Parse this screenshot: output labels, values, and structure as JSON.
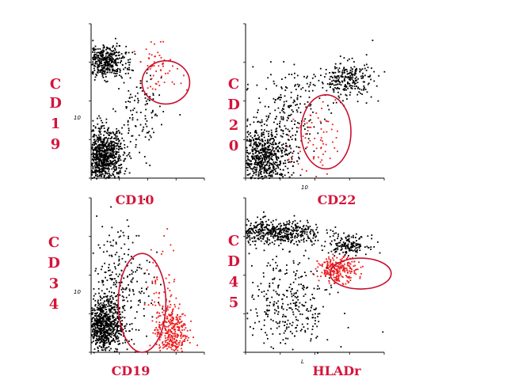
{
  "colors": {
    "label": "#d4143a",
    "highlight": "#ee1a1a",
    "gate": "#c8102e",
    "events": "#000000"
  },
  "chart_data": [
    {
      "type": "scatter",
      "xlabel": "CD10",
      "ylabel": "CD19",
      "ylabel_letters": [
        "C",
        "D",
        "1",
        "9"
      ],
      "x_tick_label": "",
      "y_tick_label": "10",
      "scale": "log",
      "clusters_black": [
        {
          "cx": 0.12,
          "cy": 0.76,
          "sx": 0.09,
          "sy": 0.05,
          "n": 420
        },
        {
          "cx": 0.1,
          "cy": 0.14,
          "sx": 0.09,
          "sy": 0.09,
          "n": 900
        },
        {
          "cx": 0.42,
          "cy": 0.4,
          "sx": 0.1,
          "sy": 0.18,
          "n": 120
        }
      ],
      "clusters_red": [
        {
          "cx": 0.6,
          "cy": 0.72,
          "sx": 0.1,
          "sy": 0.07,
          "n": 55
        }
      ],
      "gate": {
        "cx": 0.66,
        "cy": 0.62,
        "rx": 0.21,
        "ry": 0.14,
        "angle": 0
      }
    },
    {
      "type": "scatter",
      "xlabel": "CD22",
      "ylabel": "CD20",
      "ylabel_letters": [
        "C",
        "D",
        "2",
        "0"
      ],
      "x_tick_label": "10",
      "y_tick_label": "",
      "scale": "log",
      "clusters_black": [
        {
          "cx": 0.12,
          "cy": 0.14,
          "sx": 0.1,
          "sy": 0.1,
          "n": 750
        },
        {
          "cx": 0.72,
          "cy": 0.64,
          "sx": 0.1,
          "sy": 0.06,
          "n": 260
        },
        {
          "cx": 0.3,
          "cy": 0.45,
          "sx": 0.12,
          "sy": 0.12,
          "n": 180
        }
      ],
      "clusters_red": [
        {
          "cx": 0.48,
          "cy": 0.25,
          "sx": 0.08,
          "sy": 0.12,
          "n": 70
        }
      ],
      "gate": {
        "cx": 0.58,
        "cy": 0.3,
        "rx": 0.18,
        "ry": 0.24,
        "angle": 0
      }
    },
    {
      "type": "scatter",
      "xlabel": "CD19",
      "ylabel": "CD34",
      "ylabel_letters": [
        "C",
        "D",
        "3",
        "4"
      ],
      "x_tick_label": "",
      "y_tick_label": "10",
      "scale": "log",
      "clusters_black": [
        {
          "cx": 0.1,
          "cy": 0.18,
          "sx": 0.09,
          "sy": 0.09,
          "n": 800
        },
        {
          "cx": 0.24,
          "cy": 0.45,
          "sx": 0.14,
          "sy": 0.2,
          "n": 260
        }
      ],
      "clusters_red": [
        {
          "cx": 0.7,
          "cy": 0.14,
          "sx": 0.07,
          "sy": 0.09,
          "n": 320
        },
        {
          "cx": 0.62,
          "cy": 0.4,
          "sx": 0.07,
          "sy": 0.18,
          "n": 60
        }
      ],
      "gate": {
        "cx": 0.45,
        "cy": 0.32,
        "rx": 0.21,
        "ry": 0.32,
        "angle": 0
      }
    },
    {
      "type": "scatter",
      "xlabel": "HLADr",
      "ylabel": "CD45",
      "ylabel_letters": [
        "C",
        "D",
        "4",
        "5"
      ],
      "x_tick_label": "L",
      "y_tick_label": "",
      "scale": "log",
      "clusters_black": [
        {
          "cx": 0.2,
          "cy": 0.78,
          "sx": 0.18,
          "sy": 0.04,
          "n": 520
        },
        {
          "cx": 0.74,
          "cy": 0.7,
          "sx": 0.07,
          "sy": 0.03,
          "n": 160
        },
        {
          "cx": 0.3,
          "cy": 0.3,
          "sx": 0.16,
          "sy": 0.18,
          "n": 330
        }
      ],
      "clusters_red": [
        {
          "cx": 0.66,
          "cy": 0.54,
          "sx": 0.07,
          "sy": 0.04,
          "n": 230
        }
      ],
      "gate": {
        "cx": 0.83,
        "cy": 0.51,
        "rx": 0.22,
        "ry": 0.1,
        "angle": 0
      }
    }
  ]
}
